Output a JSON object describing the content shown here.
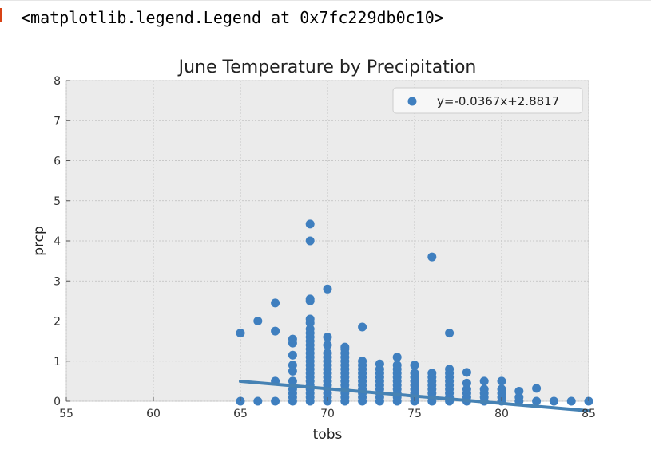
{
  "cell": {
    "output_repr": "<matplotlib.legend.Legend at 0x7fc229db0c10>"
  },
  "colors": {
    "background": "#ebebeb",
    "grid": "#bdbdbd",
    "marker": "#3f7fbf",
    "line": "#4682b4"
  },
  "chart_data": {
    "type": "scatter",
    "title": "June Temperature by Precipitation",
    "xlabel": "tobs",
    "ylabel": "prcp",
    "xlim": [
      55,
      85
    ],
    "ylim": [
      0,
      8
    ],
    "xticks": [
      "55",
      "60",
      "65",
      "70",
      "75",
      "80",
      "85"
    ],
    "yticks": [
      "0",
      "1",
      "2",
      "3",
      "4",
      "5",
      "6",
      "7",
      "8"
    ],
    "grid": true,
    "legend": {
      "placement": "top-right",
      "entries": [
        "y=-0.0367x+2.8817"
      ]
    },
    "regression": {
      "slope": -0.0367,
      "intercept": 2.8817,
      "x_range": [
        65,
        85
      ]
    },
    "points": [
      [
        65,
        0.0
      ],
      [
        65,
        1.7
      ],
      [
        66,
        0.0
      ],
      [
        66,
        2.0
      ],
      [
        67,
        0.0
      ],
      [
        67,
        0.5
      ],
      [
        67,
        1.75
      ],
      [
        67,
        2.45
      ],
      [
        68,
        0.0
      ],
      [
        68,
        0.1
      ],
      [
        68,
        0.2
      ],
      [
        68,
        0.3
      ],
      [
        68,
        0.5
      ],
      [
        68,
        0.75
      ],
      [
        68,
        0.9
      ],
      [
        68,
        1.15
      ],
      [
        68,
        1.45
      ],
      [
        68,
        1.55
      ],
      [
        69,
        0.0
      ],
      [
        69,
        0.1
      ],
      [
        69,
        0.2
      ],
      [
        69,
        0.3
      ],
      [
        69,
        0.4
      ],
      [
        69,
        0.5
      ],
      [
        69,
        0.6
      ],
      [
        69,
        0.7
      ],
      [
        69,
        0.8
      ],
      [
        69,
        0.9
      ],
      [
        69,
        1.0
      ],
      [
        69,
        1.1
      ],
      [
        69,
        1.2
      ],
      [
        69,
        1.3
      ],
      [
        69,
        1.4
      ],
      [
        69,
        1.5
      ],
      [
        69,
        1.6
      ],
      [
        69,
        1.7
      ],
      [
        69,
        1.8
      ],
      [
        69,
        1.95
      ],
      [
        69,
        2.05
      ],
      [
        69,
        2.5
      ],
      [
        69,
        2.55
      ],
      [
        69,
        4.0
      ],
      [
        69,
        4.42
      ],
      [
        70,
        0.0
      ],
      [
        70,
        0.1
      ],
      [
        70,
        0.2
      ],
      [
        70,
        0.3
      ],
      [
        70,
        0.4
      ],
      [
        70,
        0.5
      ],
      [
        70,
        0.6
      ],
      [
        70,
        0.7
      ],
      [
        70,
        0.8
      ],
      [
        70,
        0.9
      ],
      [
        70,
        1.0
      ],
      [
        70,
        1.1
      ],
      [
        70,
        1.2
      ],
      [
        70,
        1.4
      ],
      [
        70,
        1.6
      ],
      [
        70,
        2.8
      ],
      [
        71,
        0.0
      ],
      [
        71,
        0.1
      ],
      [
        71,
        0.2
      ],
      [
        71,
        0.3
      ],
      [
        71,
        0.4
      ],
      [
        71,
        0.5
      ],
      [
        71,
        0.6
      ],
      [
        71,
        0.7
      ],
      [
        71,
        0.8
      ],
      [
        71,
        0.9
      ],
      [
        71,
        1.0
      ],
      [
        71,
        1.1
      ],
      [
        71,
        1.2
      ],
      [
        71,
        1.3
      ],
      [
        71,
        1.35
      ],
      [
        72,
        0.0
      ],
      [
        72,
        0.1
      ],
      [
        72,
        0.2
      ],
      [
        72,
        0.3
      ],
      [
        72,
        0.4
      ],
      [
        72,
        0.5
      ],
      [
        72,
        0.6
      ],
      [
        72,
        0.7
      ],
      [
        72,
        0.8
      ],
      [
        72,
        0.9
      ],
      [
        72,
        1.0
      ],
      [
        72,
        1.85
      ],
      [
        73,
        0.0
      ],
      [
        73,
        0.1
      ],
      [
        73,
        0.2
      ],
      [
        73,
        0.3
      ],
      [
        73,
        0.4
      ],
      [
        73,
        0.5
      ],
      [
        73,
        0.6
      ],
      [
        73,
        0.7
      ],
      [
        73,
        0.8
      ],
      [
        73,
        0.93
      ],
      [
        74,
        0.0
      ],
      [
        74,
        0.1
      ],
      [
        74,
        0.2
      ],
      [
        74,
        0.3
      ],
      [
        74,
        0.4
      ],
      [
        74,
        0.5
      ],
      [
        74,
        0.6
      ],
      [
        74,
        0.7
      ],
      [
        74,
        0.8
      ],
      [
        74,
        0.9
      ],
      [
        74,
        1.1
      ],
      [
        75,
        0.0
      ],
      [
        75,
        0.1
      ],
      [
        75,
        0.2
      ],
      [
        75,
        0.3
      ],
      [
        75,
        0.4
      ],
      [
        75,
        0.5
      ],
      [
        75,
        0.6
      ],
      [
        75,
        0.7
      ],
      [
        75,
        0.9
      ],
      [
        76,
        0.0
      ],
      [
        76,
        0.1
      ],
      [
        76,
        0.2
      ],
      [
        76,
        0.3
      ],
      [
        76,
        0.4
      ],
      [
        76,
        0.5
      ],
      [
        76,
        0.6
      ],
      [
        76,
        0.7
      ],
      [
        76,
        3.6
      ],
      [
        77,
        0.0
      ],
      [
        77,
        0.1
      ],
      [
        77,
        0.2
      ],
      [
        77,
        0.3
      ],
      [
        77,
        0.4
      ],
      [
        77,
        0.5
      ],
      [
        77,
        0.6
      ],
      [
        77,
        0.7
      ],
      [
        77,
        0.8
      ],
      [
        77,
        1.7
      ],
      [
        78,
        0.0
      ],
      [
        78,
        0.1
      ],
      [
        78,
        0.2
      ],
      [
        78,
        0.3
      ],
      [
        78,
        0.45
      ],
      [
        78,
        0.72
      ],
      [
        79,
        0.0
      ],
      [
        79,
        0.1
      ],
      [
        79,
        0.2
      ],
      [
        79,
        0.3
      ],
      [
        79,
        0.5
      ],
      [
        80,
        0.0
      ],
      [
        80,
        0.1
      ],
      [
        80,
        0.2
      ],
      [
        80,
        0.3
      ],
      [
        80,
        0.5
      ],
      [
        81,
        0.0
      ],
      [
        81,
        0.1
      ],
      [
        81,
        0.25
      ],
      [
        82,
        0.0
      ],
      [
        82,
        0.32
      ],
      [
        83,
        0.0
      ],
      [
        84,
        0.0
      ],
      [
        85,
        0.0
      ]
    ]
  }
}
